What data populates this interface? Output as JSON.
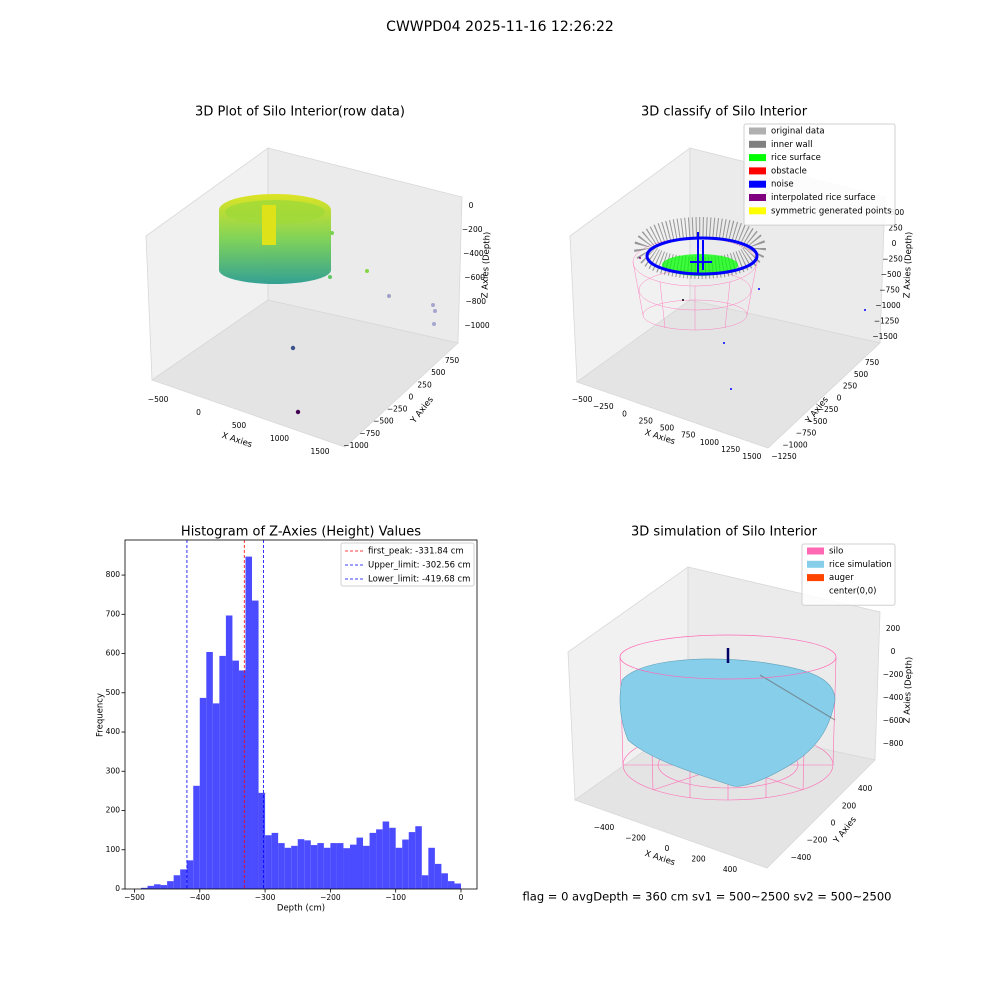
{
  "title": "CWWPD04 2025-11-16 12:26:22",
  "chart_data": [
    {
      "type": "scatter3d",
      "title": "3D Plot of Silo Interior(row data)",
      "xlabel": "X Axies",
      "ylabel": "Y Axies",
      "zlabel": "Z Axies (Depth)",
      "xlim": [
        -600,
        1700
      ],
      "xticks": [
        {
          "value": -500,
          "label": "−500"
        },
        0,
        500,
        1000,
        1500
      ],
      "ylim": [
        -1100,
        850
      ],
      "yticks": [
        {
          "value": -1000,
          "label": "−1000"
        },
        {
          "value": -750,
          "label": "−750"
        },
        {
          "value": -500,
          "label": "−500"
        },
        {
          "value": -250,
          "label": "−250"
        },
        0,
        250,
        500,
        750
      ],
      "zlim": [
        -1100,
        100
      ],
      "zticks": [
        0,
        {
          "value": -200,
          "label": "−200"
        },
        {
          "value": -400,
          "label": "−400"
        },
        {
          "value": -600,
          "label": "−600"
        },
        {
          "value": -800,
          "label": "−800"
        },
        {
          "value": -1000,
          "label": "−1000"
        }
      ]
    },
    {
      "type": "scatter3d",
      "title": "3D classify of Silo Interior",
      "xlabel": "X Axies",
      "ylabel": "Y Axies",
      "zlabel": "Z Axies (Depth)",
      "xlim": [
        -600,
        1650
      ],
      "xticks": [
        {
          "value": -500,
          "label": "−500"
        },
        {
          "value": -250,
          "label": "−250"
        },
        0,
        250,
        500,
        750,
        1000,
        1250,
        1500
      ],
      "ylim": [
        -1350,
        850
      ],
      "yticks": [
        {
          "value": -1250,
          "label": "−1250"
        },
        {
          "value": -1000,
          "label": "−1000"
        },
        {
          "value": -750,
          "label": "−750"
        },
        {
          "value": -500,
          "label": "−500"
        },
        {
          "value": -250,
          "label": "−250"
        },
        0,
        250,
        500,
        750
      ],
      "zlim": [
        -1600,
        600
      ],
      "zticks": [
        {
          "value": -1500,
          "label": "−1500"
        },
        {
          "value": -1250,
          "label": "−1250"
        },
        {
          "value": -1000,
          "label": "−1000"
        },
        {
          "value": -750,
          "label": "−750"
        },
        {
          "value": -500,
          "label": "−500"
        },
        {
          "value": -250,
          "label": "−250"
        },
        0,
        250,
        500
      ],
      "legend_loc": "upper right",
      "legend": [
        {
          "name": "original data",
          "color": "#b0b0b0"
        },
        {
          "name": "inner wall",
          "color": "#808080"
        },
        {
          "name": "rice surface",
          "color": "#00ff00"
        },
        {
          "name": "obstacle",
          "color": "#ff0000"
        },
        {
          "name": "noise",
          "color": "#0000ff"
        },
        {
          "name": "interpolated rice surface",
          "color": "#800080"
        },
        {
          "name": "symmetric generated points",
          "color": "#ffff00"
        }
      ]
    },
    {
      "type": "histogram",
      "title": "Histogram of Z-Axies (Height) Values",
      "xlabel": "Depth (cm)",
      "ylabel": "Frequency",
      "color": "#4b4bff",
      "bins": [
        -490,
        -480,
        -470,
        -460,
        -450,
        -440,
        -430,
        -420,
        -410,
        -400,
        -390,
        -380,
        -370,
        -360,
        -350,
        -340,
        -330,
        -320,
        -310,
        -300,
        -290,
        -280,
        -270,
        -260,
        -250,
        -240,
        -230,
        -220,
        -210,
        -200,
        -190,
        -180,
        -170,
        -160,
        -150,
        -140,
        -130,
        -120,
        -110,
        -100,
        -90,
        -80,
        -70,
        -60,
        -50,
        -40,
        -30,
        -20,
        -10,
        0
      ],
      "values": [
        3,
        8,
        12,
        10,
        20,
        35,
        50,
        73,
        263,
        487,
        604,
        473,
        594,
        697,
        582,
        557,
        847,
        735,
        245,
        137,
        143,
        117,
        105,
        110,
        127,
        124,
        112,
        117,
        105,
        117,
        117,
        104,
        113,
        131,
        110,
        143,
        152,
        172,
        156,
        105,
        126,
        145,
        160,
        35,
        105,
        64,
        40,
        20,
        14
      ],
      "xlim": [
        -514.5,
        24.5
      ],
      "xticks": [
        {
          "value": -500,
          "label": "−500"
        },
        {
          "value": -400,
          "label": "−400"
        },
        {
          "value": -300,
          "label": "−300"
        },
        {
          "value": -200,
          "label": "−200"
        },
        {
          "value": -100,
          "label": "−100"
        },
        0
      ],
      "ylim": [
        0,
        889.35
      ],
      "yticks": [
        0,
        100,
        200,
        300,
        400,
        500,
        600,
        700,
        800
      ],
      "legend_loc": "upper right",
      "vlines": [
        {
          "name": "first_peak: -331.84 cm",
          "color": "#ff0000",
          "value": -331.84
        },
        {
          "name": "Upper_limit: -302.56 cm",
          "color": "#0000ff",
          "value": -302.56
        },
        {
          "name": "Lower_limit: -419.68 cm",
          "color": "#0000ff",
          "value": -419.68
        }
      ]
    },
    {
      "type": "surface3d",
      "title": "3D simulation of Silo Interior",
      "xlabel": "X Axies",
      "ylabel": "Y Axies",
      "zlabel": "Z Axies (Depth)",
      "xlim": [
        -500,
        500
      ],
      "xticks": [
        {
          "value": -400,
          "label": "−400"
        },
        {
          "value": -200,
          "label": "−200"
        },
        0,
        200,
        400
      ],
      "ylim": [
        -500,
        500
      ],
      "yticks": [
        {
          "value": -400,
          "label": "−400"
        },
        {
          "value": -200,
          "label": "−200"
        },
        0,
        200,
        400
      ],
      "zlim": [
        -900,
        300
      ],
      "zticks": [
        200,
        0,
        {
          "value": -200,
          "label": "−200"
        },
        {
          "value": -400,
          "label": "−400"
        },
        {
          "value": -600,
          "label": "−600"
        },
        {
          "value": -800,
          "label": "−800"
        }
      ],
      "legend_loc": "upper right",
      "legend": [
        {
          "name": "silo",
          "color": "#ff69b4"
        },
        {
          "name": "rice simulation",
          "color": "#87ceeb"
        },
        {
          "name": "auger",
          "color": "#ff4500"
        },
        {
          "name": "center(0,0)",
          "color": "#ffffff"
        }
      ],
      "annotation": "flag = 0     avgDepth = 360 cm  sv1 = 500~2500  sv2 = 500~2500"
    }
  ]
}
